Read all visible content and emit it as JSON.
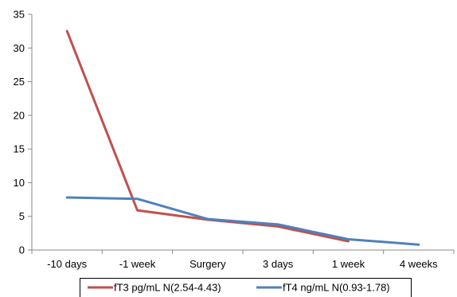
{
  "chart_data": {
    "type": "line",
    "title": "",
    "xlabel": "",
    "ylabel": "",
    "categories": [
      "-10 days",
      "-1 week",
      "Surgery",
      "3 days",
      "1 week",
      "4 weeks"
    ],
    "ylim": [
      0,
      35
    ],
    "yticks": [
      0,
      5,
      10,
      15,
      20,
      25,
      30,
      35
    ],
    "grid": false,
    "legend_position": "bottom",
    "series": [
      {
        "name": "fT3 pg/mL N(2.54-4.43)",
        "color": "#C0504D",
        "values": [
          32.5,
          5.9,
          4.5,
          3.5,
          1.3,
          null
        ]
      },
      {
        "name": "fT4 ng/mL N(0.93-1.78)",
        "color": "#4F81BD",
        "values": [
          7.8,
          7.6,
          4.6,
          3.8,
          1.6,
          0.8
        ]
      }
    ]
  }
}
